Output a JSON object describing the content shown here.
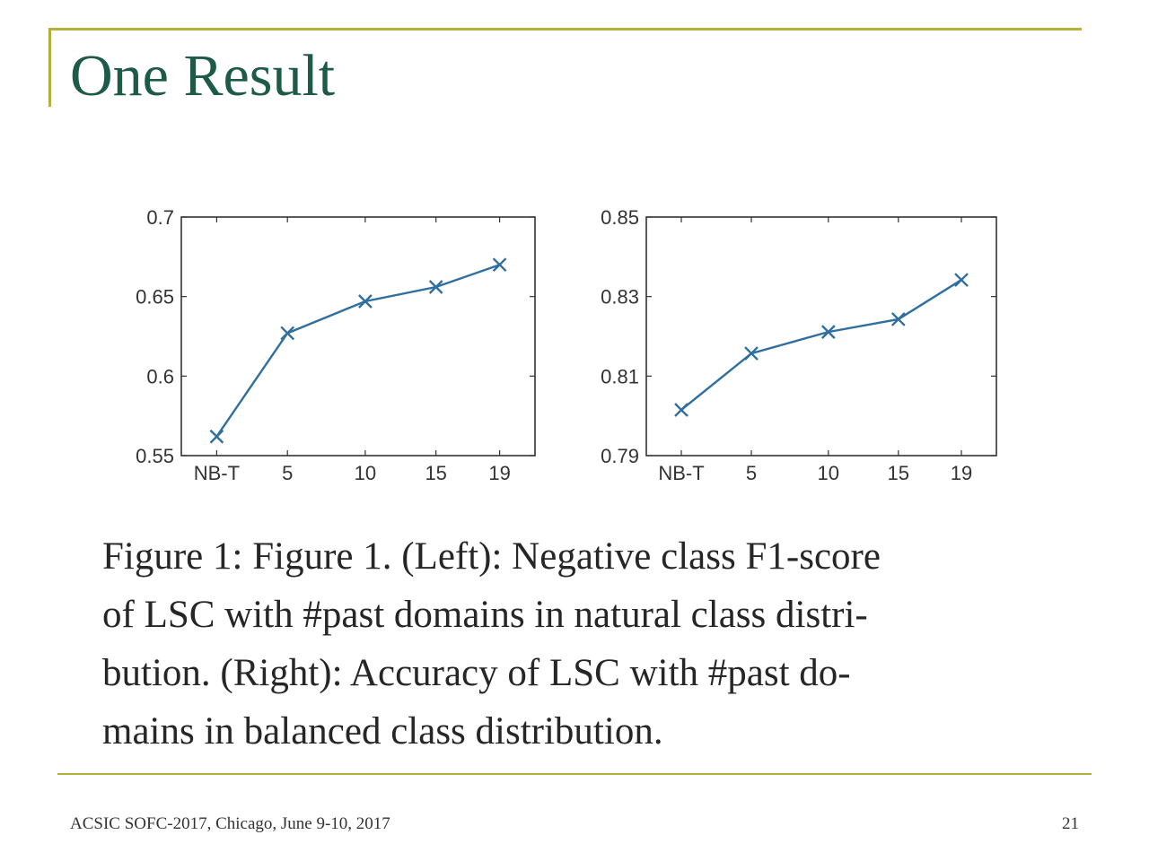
{
  "slide": {
    "title": "One Result",
    "footer": "ACSIC SOFC-2017, Chicago, June 9-10, 2017",
    "page_number": "21"
  },
  "caption": {
    "lines": [
      "Figure 1: Figure 1. (Left): Negative class F1-score",
      "of LSC with #past domains in natural class distri-",
      "bution.  (Right):  Accuracy of LSC with #past do-",
      "mains in balanced class distribution."
    ]
  },
  "colors": {
    "title": "#1e5a48",
    "rule": "#b5b039",
    "series": "#2f6f9f"
  },
  "chart_data": [
    {
      "type": "line",
      "categories": [
        "NB-T",
        "5",
        "10",
        "15",
        "19"
      ],
      "series": [
        {
          "values": [
            0.562,
            0.627,
            0.647,
            0.656,
            0.67
          ],
          "marker": "x"
        }
      ],
      "ylim": [
        0.55,
        0.7
      ],
      "yticks": [
        "0.55",
        "0.6",
        "0.65",
        "0.7"
      ],
      "grid": false
    },
    {
      "type": "line",
      "categories": [
        "NB-T",
        "5",
        "10",
        "15",
        "19"
      ],
      "series": [
        {
          "values": [
            0.8015,
            0.8157,
            0.8211,
            0.8243,
            0.8342
          ],
          "marker": "x"
        }
      ],
      "ylim": [
        0.79,
        0.85
      ],
      "yticks": [
        "0.79",
        "0.81",
        "0.83",
        "0.85"
      ],
      "grid": false
    }
  ]
}
